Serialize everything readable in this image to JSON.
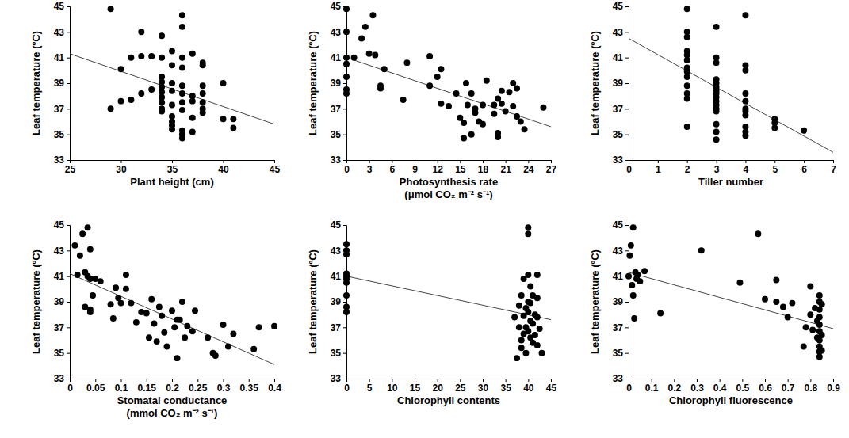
{
  "chart_data": [
    {
      "type": "scatter",
      "xlabel": [
        "Plant height (cm)"
      ],
      "ylabel": "Leaf temperature (ºC)",
      "color": "#000000",
      "marker": "circle",
      "xlim": [
        25,
        45
      ],
      "xticks": [
        25,
        30,
        35,
        40,
        45
      ],
      "ylim": [
        33,
        45
      ],
      "yticks": [
        33,
        35,
        37,
        39,
        41,
        43,
        45
      ],
      "x": [
        29,
        29,
        30,
        30,
        31,
        31,
        32,
        32,
        32,
        33,
        33,
        34,
        34,
        34,
        34,
        34,
        34,
        34,
        34,
        34,
        34,
        35,
        35,
        35,
        35,
        35,
        35,
        35,
        35,
        35,
        36,
        36,
        36,
        36,
        36,
        36,
        36,
        36,
        36,
        36,
        36,
        37,
        37,
        37,
        37,
        37,
        38,
        38,
        38,
        38,
        38,
        38,
        38,
        40,
        40,
        41,
        41
      ],
      "values": [
        44.8,
        37,
        40.1,
        37.6,
        37.7,
        41.0,
        43.0,
        38.2,
        41.1,
        41.1,
        38.5,
        42.7,
        41.0,
        39.5,
        39.1,
        38.7,
        38.3,
        37.9,
        37.5,
        37.0,
        36.8,
        41.5,
        40.4,
        39.0,
        38.4,
        37.3,
        36.4,
        36.0,
        35.7,
        35.4,
        44.3,
        43.4,
        41.0,
        40.2,
        38.8,
        38.2,
        37.5,
        36.9,
        35.3,
        35.0,
        34.7,
        41.3,
        38.0,
        37.6,
        36.3,
        35.2,
        40.6,
        40.4,
        38.8,
        38.2,
        37.5,
        37.0,
        36.7,
        39.0,
        36.2,
        36.2,
        35.5
      ],
      "trend_line": {
        "x": [
          25,
          45
        ],
        "values": [
          41.3,
          35.8
        ]
      }
    },
    {
      "type": "scatter",
      "xlabel": [
        "Photosynthesis rate",
        "(μmol CO₂ m⁻² s⁻¹)"
      ],
      "ylabel": "Leaf temperature (ºC)",
      "color": "#000000",
      "marker": "circle",
      "xlim": [
        0,
        27
      ],
      "xticks": [
        0,
        3,
        6,
        9,
        12,
        15,
        18,
        21,
        24,
        27
      ],
      "ylim": [
        33,
        45
      ],
      "yticks": [
        33,
        35,
        37,
        39,
        41,
        43,
        45
      ],
      "x": [
        0,
        0,
        0,
        0,
        0,
        0,
        0,
        1,
        2,
        2.5,
        3,
        3.5,
        3.8,
        4.5,
        4.5,
        5,
        7.5,
        8,
        11,
        11,
        12,
        12.5,
        12.5,
        13.5,
        14.5,
        15,
        15.5,
        15.5,
        15.8,
        16,
        16.5,
        16.5,
        17,
        17,
        17.5,
        18,
        18,
        18.5,
        19.5,
        19.5,
        20,
        20,
        20,
        20.5,
        20.5,
        21,
        21.5,
        22,
        22,
        22.5,
        22.5,
        23,
        23.5,
        26
      ],
      "values": [
        44.8,
        43.0,
        41.0,
        40.5,
        39.5,
        38.5,
        38.2,
        41.0,
        42.5,
        43.4,
        41.3,
        44.3,
        41.2,
        38.8,
        38.6,
        40.1,
        37.7,
        40.6,
        41.1,
        38.8,
        39.5,
        40.1,
        37.4,
        37.2,
        38.2,
        36.3,
        35.9,
        34.7,
        39.0,
        37.3,
        35.0,
        38.2,
        36.7,
        37.0,
        36.0,
        37.3,
        35.8,
        39.2,
        37.3,
        36.6,
        34.8,
        35.1,
        37.8,
        38.4,
        37.4,
        36.8,
        38.3,
        37.2,
        39.0,
        38.6,
        36.4,
        36.0,
        35.4,
        37.1
      ],
      "trend_line": {
        "x": [
          0,
          27
        ],
        "values": [
          41.0,
          35.6
        ]
      }
    },
    {
      "type": "scatter",
      "xlabel": [
        "Tiller number"
      ],
      "ylabel": "Leaf temperature (ºC)",
      "color": "#000000",
      "marker": "circle",
      "xlim": [
        0,
        7
      ],
      "xticks": [
        0,
        1,
        2,
        3,
        4,
        5,
        6,
        7
      ],
      "ylim": [
        33,
        45
      ],
      "yticks": [
        33,
        35,
        37,
        39,
        41,
        43,
        45
      ],
      "x": [
        2,
        2,
        2,
        2,
        2,
        2,
        2,
        2,
        2,
        2,
        2,
        2,
        2,
        3,
        3,
        3,
        3,
        3,
        3,
        3,
        3,
        3,
        3,
        3,
        3,
        3,
        3,
        3,
        3,
        4,
        4,
        4,
        4,
        4,
        4,
        4,
        4,
        4,
        4,
        4,
        5,
        5,
        5,
        6
      ],
      "values": [
        44.8,
        43.0,
        42.6,
        41.5,
        41.2,
        40.8,
        40.2,
        39.9,
        39.5,
        38.8,
        38.2,
        37.8,
        35.6,
        43.4,
        41.0,
        40.6,
        39.3,
        39.0,
        38.7,
        38.4,
        38.2,
        37.9,
        37.6,
        37.3,
        37.0,
        36.8,
        35.8,
        35.2,
        34.6,
        44.3,
        40.4,
        40.0,
        38.2,
        37.6,
        37.0,
        36.8,
        36.5,
        35.6,
        35.2,
        34.9,
        36.2,
        35.9,
        35.5,
        35.3
      ],
      "trend_line": {
        "x": [
          0,
          7
        ],
        "values": [
          42.5,
          33.6
        ]
      }
    },
    {
      "type": "scatter",
      "xlabel": [
        "Stomatal conductance",
        "(mmol CO₂ m⁻² s⁻¹)"
      ],
      "ylabel": "Leaf temperature (ºC)",
      "color": "#000000",
      "marker": "circle",
      "xlim": [
        0,
        0.4
      ],
      "xticks": [
        0,
        0.05,
        0.1,
        0.15,
        0.2,
        0.25,
        0.3,
        0.35,
        0.4
      ],
      "ylim": [
        33,
        45
      ],
      "yticks": [
        33,
        35,
        37,
        39,
        41,
        43,
        45
      ],
      "x": [
        0.01,
        0.015,
        0.02,
        0.025,
        0.03,
        0.03,
        0.035,
        0.035,
        0.04,
        0.04,
        0.04,
        0.04,
        0.045,
        0.05,
        0.06,
        0.08,
        0.085,
        0.09,
        0.095,
        0.1,
        0.11,
        0.11,
        0.12,
        0.13,
        0.14,
        0.15,
        0.155,
        0.16,
        0.165,
        0.17,
        0.175,
        0.18,
        0.185,
        0.19,
        0.2,
        0.205,
        0.21,
        0.21,
        0.215,
        0.22,
        0.225,
        0.23,
        0.24,
        0.245,
        0.27,
        0.28,
        0.285,
        0.3,
        0.31,
        0.32,
        0.36,
        0.37,
        0.4
      ],
      "values": [
        43.4,
        41.1,
        42.6,
        44.3,
        41.3,
        38.6,
        44.8,
        41.0,
        40.8,
        38.4,
        43.1,
        38.2,
        39.5,
        40.8,
        40.6,
        38.8,
        37.7,
        40.1,
        39.3,
        38.9,
        41.1,
        40.0,
        38.9,
        37.4,
        38.2,
        38.1,
        36.2,
        39.2,
        37.3,
        35.9,
        38.6,
        37.9,
        36.6,
        35.5,
        38.3,
        37.0,
        34.6,
        37.6,
        37.6,
        39.0,
        36.2,
        37.1,
        36.7,
        38.3,
        36.2,
        35.0,
        34.8,
        37.2,
        35.5,
        36.5,
        35.3,
        37.0,
        37.1
      ],
      "trend_line": {
        "x": [
          0,
          0.4
        ],
        "values": [
          41.2,
          34.1
        ]
      }
    },
    {
      "type": "scatter",
      "xlabel": [
        "Chlorophyll contents"
      ],
      "ylabel": "Leaf temperature (ºC)",
      "color": "#000000",
      "marker": "circle",
      "xlim": [
        0,
        45
      ],
      "xticks": [
        0,
        5,
        10,
        15,
        20,
        25,
        30,
        35,
        40,
        45
      ],
      "ylim": [
        33,
        45
      ],
      "yticks": [
        33,
        35,
        37,
        39,
        41,
        43,
        45
      ],
      "x": [
        0,
        0,
        0,
        0,
        0,
        0,
        0,
        0,
        0,
        0,
        37,
        37.5,
        38,
        38,
        38.5,
        38.5,
        38.5,
        39,
        39,
        39,
        39.5,
        39.5,
        39.5,
        40,
        40,
        40,
        40,
        40,
        40,
        40.5,
        40.5,
        40.5,
        40.5,
        41,
        41,
        41,
        41.5,
        41.5,
        42,
        42,
        42,
        42,
        42.5,
        43
      ],
      "values": [
        43.5,
        43.0,
        42.7,
        41.2,
        41.0,
        40.8,
        40.5,
        39.5,
        38.6,
        38.2,
        37.8,
        34.6,
        37.0,
        38.7,
        36.0,
        35.4,
        39.5,
        40.8,
        37.9,
        36.5,
        38.5,
        37.0,
        35.0,
        44.8,
        44.3,
        41.1,
        39.0,
        38.2,
        36.7,
        40.2,
        38.9,
        37.5,
        36.2,
        39.5,
        37.3,
        35.8,
        38.0,
        36.4,
        41.1,
        39.3,
        37.8,
        35.6,
        36.9,
        35.0
      ],
      "trend_line": {
        "x": [
          0,
          45
        ],
        "values": [
          41.0,
          37.6
        ]
      }
    },
    {
      "type": "scatter",
      "xlabel": [
        "Chlorophyll fluorescence"
      ],
      "ylabel": "Leaf temperature (ºC)",
      "color": "#000000",
      "marker": "circle",
      "xlim": [
        0,
        0.9
      ],
      "xticks": [
        0,
        0.1,
        0.2,
        0.3,
        0.4,
        0.5,
        0.6,
        0.7,
        0.8,
        0.9
      ],
      "ylim": [
        33,
        45
      ],
      "yticks": [
        33,
        35,
        37,
        39,
        41,
        43,
        45
      ],
      "x": [
        0,
        0.005,
        0.01,
        0.015,
        0.02,
        0.02,
        0.025,
        0.03,
        0.035,
        0.04,
        0.05,
        0.07,
        0.14,
        0.32,
        0.49,
        0.57,
        0.6,
        0.65,
        0.65,
        0.68,
        0.7,
        0.72,
        0.77,
        0.78,
        0.8,
        0.8,
        0.81,
        0.82,
        0.83,
        0.83,
        0.84,
        0.84,
        0.84,
        0.84,
        0.84,
        0.84,
        0.84,
        0.84,
        0.84,
        0.84,
        0.85,
        0.85,
        0.85
      ],
      "values": [
        41.0,
        42.6,
        43.4,
        40.3,
        44.8,
        39.5,
        37.7,
        41.3,
        40.8,
        41.1,
        40.6,
        41.4,
        38.1,
        43.0,
        40.5,
        44.3,
        39.2,
        40.7,
        39.0,
        38.6,
        37.8,
        38.9,
        35.5,
        37.0,
        40.2,
        38.0,
        36.8,
        38.5,
        37.5,
        36.2,
        39.5,
        39.0,
        38.4,
        37.8,
        37.2,
        36.7,
        36.0,
        35.5,
        35.1,
        34.7,
        38.8,
        36.4,
        35.2
      ],
      "trend_line": {
        "x": [
          0,
          0.9
        ],
        "values": [
          41.3,
          36.9
        ]
      }
    }
  ]
}
